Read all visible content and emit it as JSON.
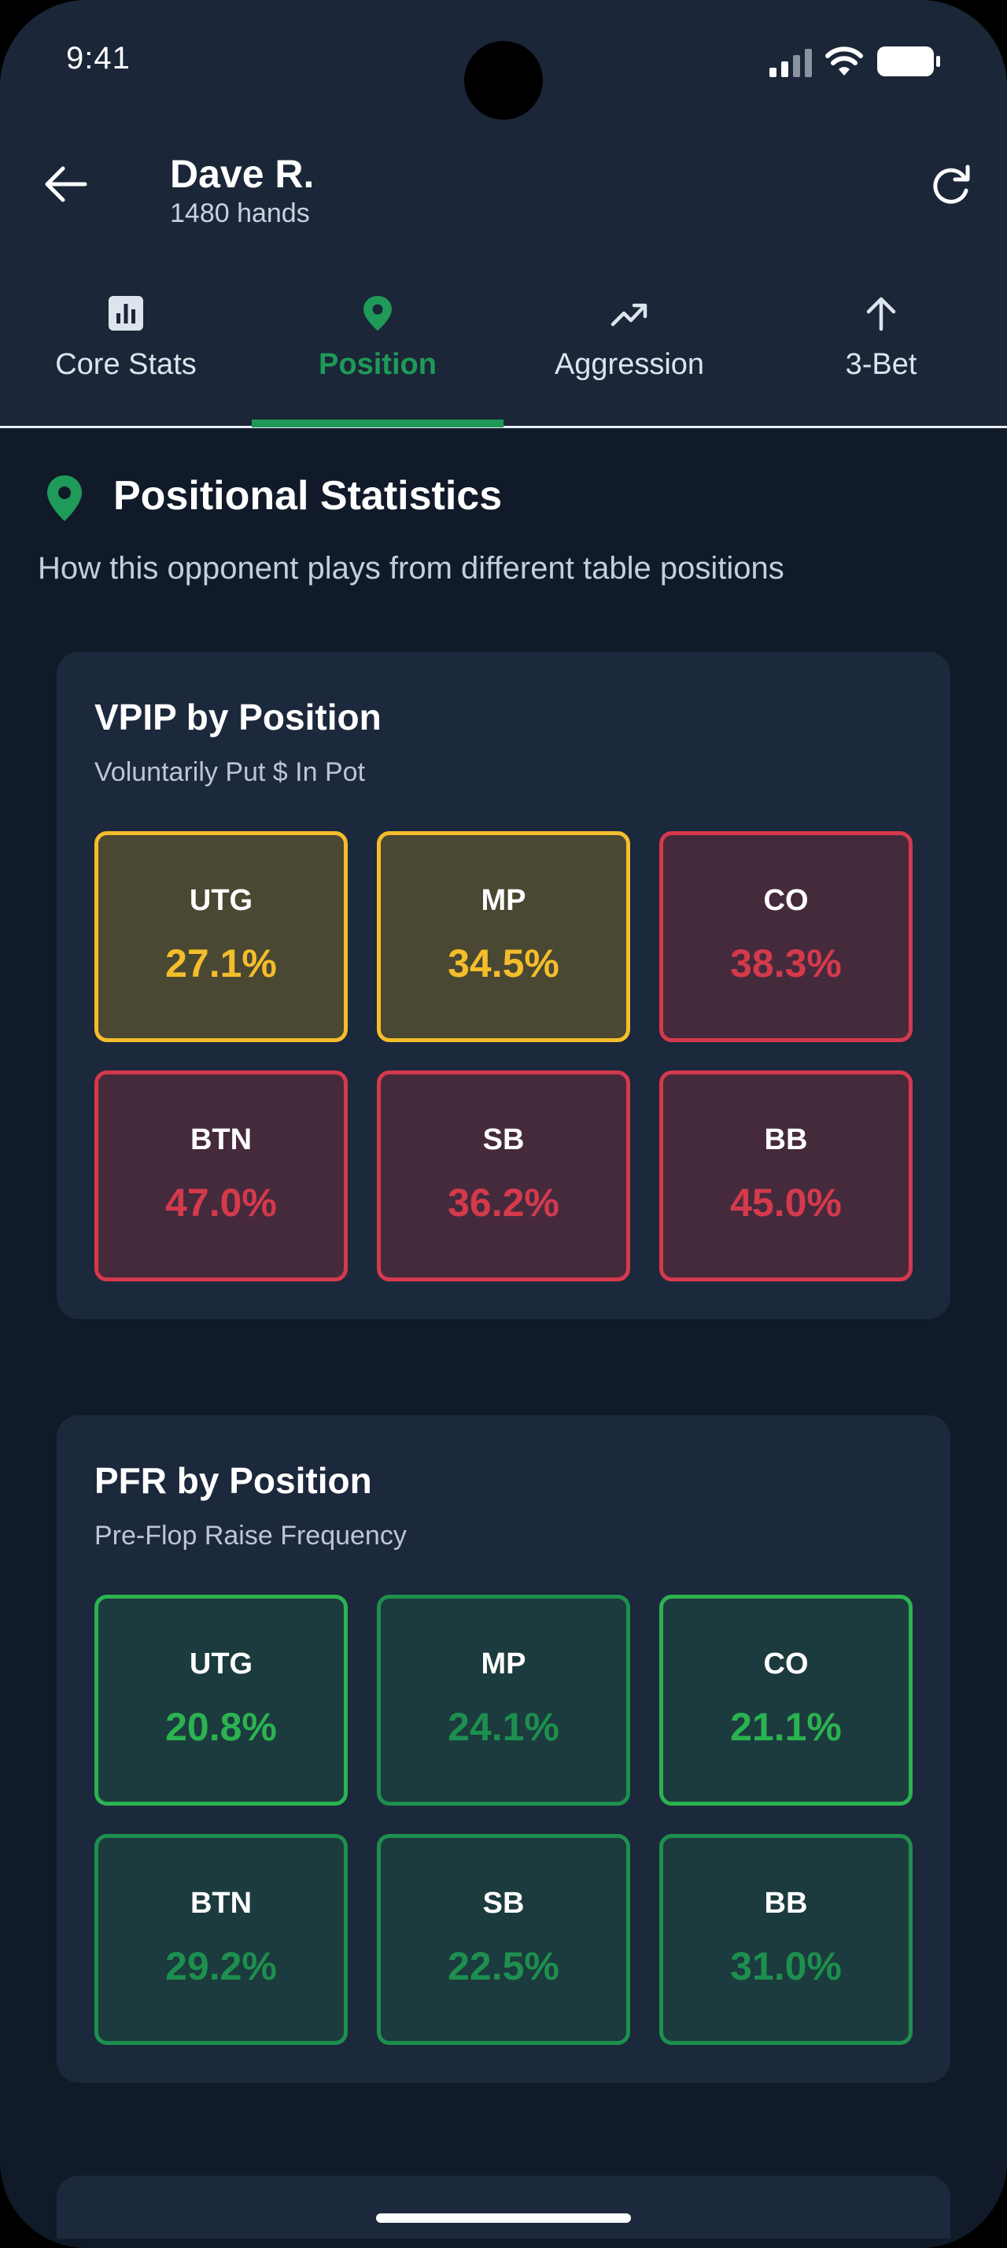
{
  "status_bar": {
    "time": "9:41"
  },
  "header": {
    "player_name": "Dave R.",
    "hands": "1480 hands"
  },
  "tabs": [
    {
      "label": "Core Stats",
      "icon": "bar-chart-icon",
      "active": false
    },
    {
      "label": "Position",
      "icon": "location-pin-icon",
      "active": true
    },
    {
      "label": "Aggression",
      "icon": "trending-up-icon",
      "active": false
    },
    {
      "label": "3-Bet",
      "icon": "arrow-up-icon",
      "active": false
    }
  ],
  "section": {
    "title": "Positional Statistics",
    "subtitle": "How this opponent plays from different table positions"
  },
  "vpip": {
    "title": "VPIP by Position",
    "subtitle": "Voluntarily Put $ In Pot",
    "cells": [
      {
        "pos": "UTG",
        "value": "27.1%",
        "tone": "yellow"
      },
      {
        "pos": "MP",
        "value": "34.5%",
        "tone": "yellow"
      },
      {
        "pos": "CO",
        "value": "38.3%",
        "tone": "red"
      },
      {
        "pos": "BTN",
        "value": "47.0%",
        "tone": "red"
      },
      {
        "pos": "SB",
        "value": "36.2%",
        "tone": "red"
      },
      {
        "pos": "BB",
        "value": "45.0%",
        "tone": "red"
      }
    ]
  },
  "pfr": {
    "title": "PFR by Position",
    "subtitle": "Pre-Flop Raise Frequency",
    "cells": [
      {
        "pos": "UTG",
        "value": "20.8%",
        "tone": "green-bright"
      },
      {
        "pos": "MP",
        "value": "24.1%",
        "tone": "green"
      },
      {
        "pos": "CO",
        "value": "21.1%",
        "tone": "green-bright"
      },
      {
        "pos": "BTN",
        "value": "29.2%",
        "tone": "green"
      },
      {
        "pos": "SB",
        "value": "22.5%",
        "tone": "green"
      },
      {
        "pos": "BB",
        "value": "31.0%",
        "tone": "green"
      }
    ]
  },
  "colors": {
    "accent": "#1f9a58",
    "yellow": "#f4bd2b",
    "red": "#d43a4c",
    "green_bright": "#2bb350",
    "green": "#1d8f4e",
    "background": "#101a28",
    "card": "#1c283b"
  }
}
